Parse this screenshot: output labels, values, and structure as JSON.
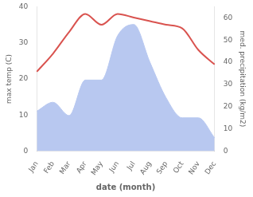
{
  "chart_data": {
    "type": "line",
    "xlabel": "date (month)",
    "ylabel": "max temp (C)",
    "y2label": "med. precipitation (kg/m2)",
    "categories": [
      "Jan",
      "Feb",
      "Mar",
      "Apr",
      "May",
      "Jun",
      "Jul",
      "Aug",
      "Sep",
      "Oct",
      "Nov",
      "Dec"
    ],
    "series": [
      {
        "type": "area",
        "color": "#b8c8f0",
        "axis": "y2",
        "values": [
          18,
          22,
          16,
          32,
          32,
          52,
          57,
          40,
          24,
          15,
          15,
          6
        ]
      },
      {
        "type": "line",
        "color": "#d9534f",
        "values": [
          22,
          27,
          33,
          38,
          35,
          38,
          37,
          36,
          35,
          34,
          28,
          24
        ]
      }
    ],
    "ylim": [
      0,
      40
    ],
    "yticks": [
      0,
      10,
      20,
      30,
      40
    ],
    "y2lim": [
      0,
      65
    ],
    "y2ticks": [
      0,
      10,
      20,
      30,
      40,
      50,
      60
    ],
    "grid": false
  }
}
